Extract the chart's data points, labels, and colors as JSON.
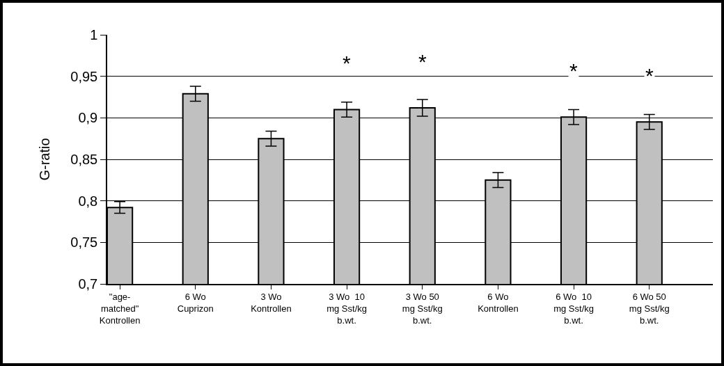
{
  "chart_data": {
    "type": "bar",
    "ylabel": "G-ratio",
    "categories": [
      "\"age-\nmatched\"\nKontrollen",
      "6 Wo\nCuprizon",
      "3 Wo\nKontrollen",
      "3 Wo  10\nmg Sst/kg\nb.wt.",
      "3 Wo 50\nmg Sst/kg\nb.wt.",
      "6 Wo\nKontrollen",
      "6 Wo  10\nmg Sst/kg\nb.wt.",
      "6 Wo 50\nmg Sst/kg\nb.wt."
    ],
    "values": [
      0.792,
      0.929,
      0.875,
      0.91,
      0.912,
      0.825,
      0.901,
      0.895
    ],
    "errors": [
      0.007,
      0.009,
      0.009,
      0.009,
      0.01,
      0.009,
      0.009,
      0.009
    ],
    "color": "#c0c0c0",
    "ylim": [
      0.7,
      1
    ],
    "yticks": [
      {
        "value": 0.7,
        "label": "0,7"
      },
      {
        "value": 0.75,
        "label": "0,75"
      },
      {
        "value": 0.8,
        "label": "0,8"
      },
      {
        "value": 0.85,
        "label": "0,85"
      },
      {
        "value": 0.9,
        "label": "0,9"
      },
      {
        "value": 0.95,
        "label": "0,95"
      },
      1
    ],
    "grid": "y",
    "annotations": [
      {
        "text": "*",
        "x": "3 Wo  10\nmg Sst/kg\nb.wt.",
        "y": 0.91
      },
      {
        "text": "*",
        "x": "3 Wo 50\nmg Sst/kg\nb.wt.",
        "y": 0.912
      },
      {
        "text": "*",
        "x": "6 Wo  10\nmg Sst/kg\nb.wt.",
        "y": 0.901
      },
      {
        "text": "*",
        "x": "6 Wo 50\nmg Sst/kg\nb.wt.",
        "y": 0.895
      }
    ]
  }
}
